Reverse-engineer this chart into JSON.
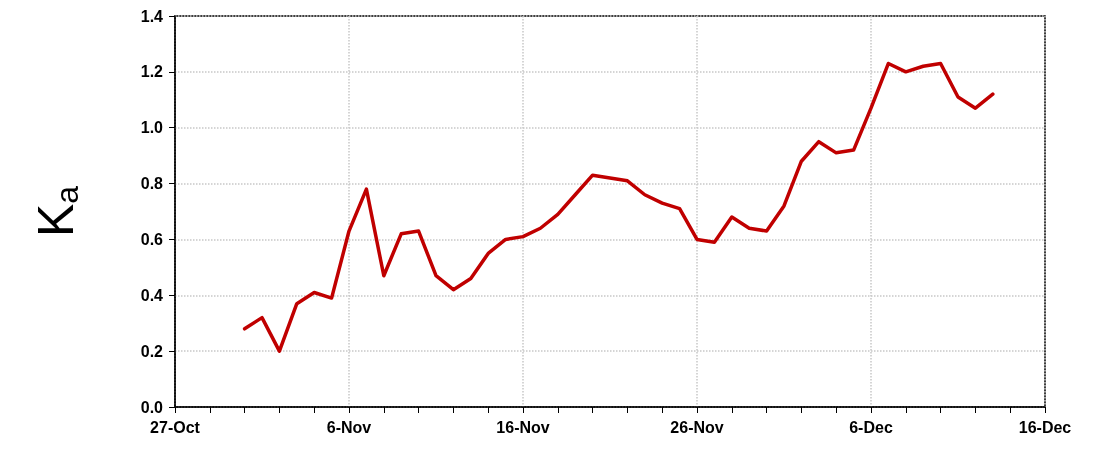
{
  "chart_data": {
    "type": "line",
    "ylabel": "K$_{a}$",
    "marker": "none",
    "line_style": "solid",
    "grid": true,
    "x": [
      "--10-31",
      "--11-01",
      "--11-02",
      "--11-03",
      "--11-04",
      "--11-05",
      "--11-06",
      "--11-07",
      "--11-08",
      "--11-09",
      "--11-10",
      "--11-11",
      "--11-12",
      "--11-13",
      "--11-14",
      "--11-15",
      "--11-16",
      "--11-17",
      "--11-18",
      "--11-19",
      "--11-20",
      "--11-21",
      "--11-22",
      "--11-23",
      "--11-24",
      "--11-25",
      "--11-26",
      "--11-27",
      "--11-28",
      "--11-29",
      "--11-30",
      "--12-01",
      "--12-02",
      "--12-03",
      "--12-04",
      "--12-05",
      "--12-06",
      "--12-07",
      "--12-08",
      "--12-09",
      "--12-10",
      "--12-11",
      "--12-12",
      "--12-13"
    ],
    "series": [
      {
        "color": "#c00000",
        "values": [
          0.28,
          0.32,
          0.2,
          0.37,
          0.41,
          0.39,
          0.63,
          0.78,
          0.47,
          0.62,
          0.63,
          0.47,
          0.42,
          0.46,
          0.55,
          0.6,
          0.61,
          0.64,
          0.69,
          0.76,
          0.83,
          0.82,
          0.81,
          0.76,
          0.73,
          0.71,
          0.6,
          0.59,
          0.68,
          0.64,
          0.63,
          0.72,
          0.88,
          0.95,
          0.91,
          0.92,
          1.07,
          1.23,
          1.2,
          1.22,
          1.23,
          1.11,
          1.07,
          1.12
        ]
      }
    ],
    "xlim": [
      "--10-27",
      "--12-16"
    ],
    "xticks": [
      {
        "value": "--10-27",
        "label": "27-Oct"
      },
      {
        "value": "--10-29",
        "label": null
      },
      {
        "value": "--10-31",
        "label": null
      },
      {
        "value": "--11-02",
        "label": null
      },
      {
        "value": "--11-04",
        "label": null
      },
      {
        "value": "--11-06",
        "label": "6-Nov"
      },
      {
        "value": "--11-08",
        "label": null
      },
      {
        "value": "--11-10",
        "label": null
      },
      {
        "value": "--11-12",
        "label": null
      },
      {
        "value": "--11-14",
        "label": null
      },
      {
        "value": "--11-16",
        "label": "16-Nov"
      },
      {
        "value": "--11-18",
        "label": null
      },
      {
        "value": "--11-20",
        "label": null
      },
      {
        "value": "--11-22",
        "label": null
      },
      {
        "value": "--11-24",
        "label": null
      },
      {
        "value": "--11-26",
        "label": "26-Nov"
      },
      {
        "value": "--11-28",
        "label": null
      },
      {
        "value": "--11-30",
        "label": null
      },
      {
        "value": "--12-02",
        "label": null
      },
      {
        "value": "--12-04",
        "label": null
      },
      {
        "value": "--12-06",
        "label": "6-Dec"
      },
      {
        "value": "--12-08",
        "label": null
      },
      {
        "value": "--12-10",
        "label": null
      },
      {
        "value": "--12-12",
        "label": null
      },
      {
        "value": "--12-14",
        "label": null
      },
      {
        "value": "--12-16",
        "label": "16-Dec"
      }
    ],
    "ylim": [
      0,
      1.4
    ],
    "yticks": [
      {
        "value": 0,
        "label": "0.0"
      },
      {
        "value": 0.2,
        "label": "0.2"
      },
      {
        "value": 0.4,
        "label": "0.4"
      },
      {
        "value": 0.6,
        "label": "0.6"
      },
      {
        "value": 0.8,
        "label": "0.8"
      },
      {
        "value": 1,
        "label": "1.0"
      },
      {
        "value": 1.2,
        "label": "1.2"
      },
      {
        "value": 1.4,
        "label": "1.4"
      }
    ]
  }
}
